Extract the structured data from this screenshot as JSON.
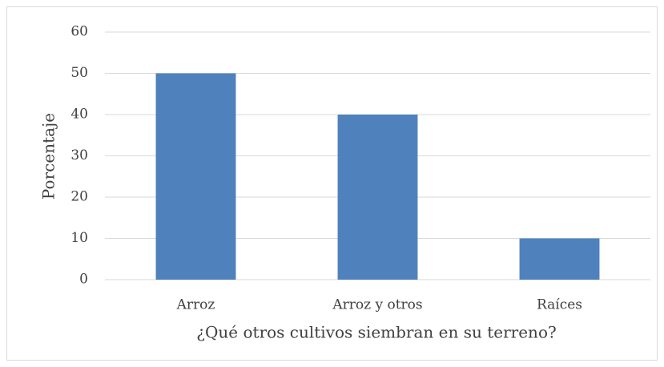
{
  "chart_data": {
    "type": "bar",
    "categories": [
      "Arroz",
      "Arroz y otros",
      "Raíces"
    ],
    "values": [
      50,
      40,
      10
    ],
    "color": "#4f81bd",
    "x_label": "¿Qué otros cultivos siembran en su terreno?",
    "y_label": "Porcentaje",
    "ylim": [
      0,
      60
    ],
    "yticks": [
      0,
      10,
      20,
      30,
      40,
      50,
      60
    ],
    "grid": true
  }
}
